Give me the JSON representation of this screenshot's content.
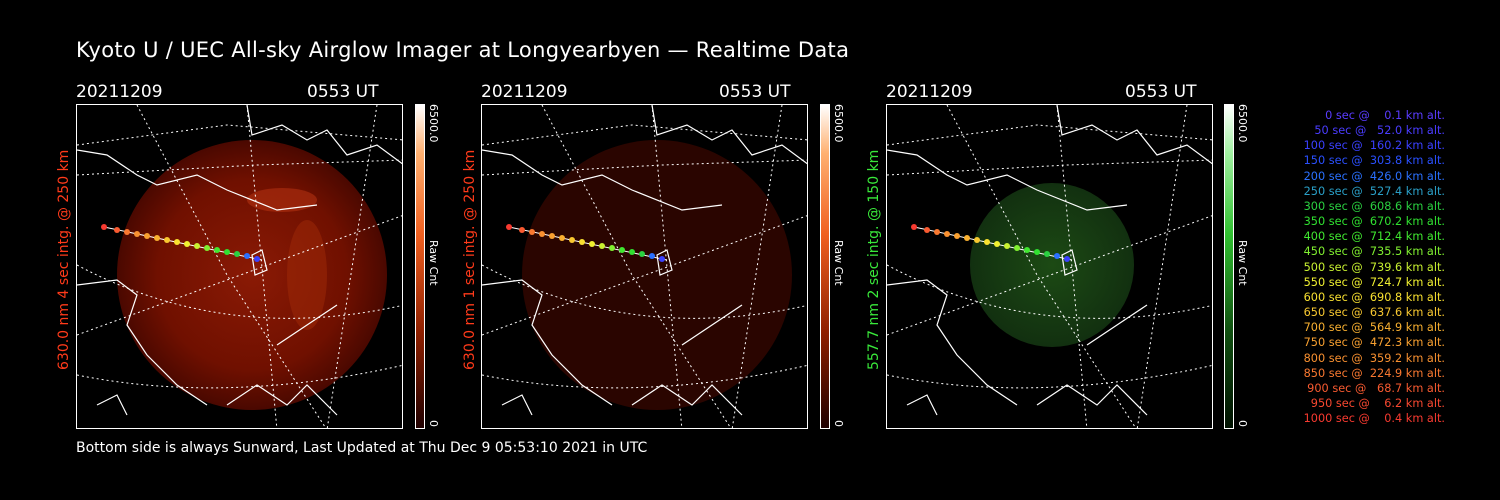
{
  "title": "Kyoto U / UEC All-sky Airglow Imager at Longyearbyen — Realtime Data",
  "footer": "Bottom side is always Sunward, Last Updated at Thu Dec  9 05:53:10 2021 in UTC",
  "panels": [
    {
      "date": "20211209",
      "time": "0553 UT",
      "side_label": "630.0 nm 4 sec intg. @ 250 km",
      "label_color": "#ff3a1a",
      "cbar_max": "6500.0",
      "cbar_min": "0",
      "cbar_unit": "Raw Cnt"
    },
    {
      "date": "20211209",
      "time": "0553 UT",
      "side_label": "630.0 nm 1 sec intg. @ 250 km",
      "label_color": "#ff3a1a",
      "cbar_max": "6500.0",
      "cbar_min": "0",
      "cbar_unit": "Raw Cnt"
    },
    {
      "date": "20211209",
      "time": "0553 UT",
      "side_label": "557.7 nm 2 sec intg. @ 150 km",
      "label_color": "#39e83a",
      "cbar_max": "6500.0",
      "cbar_min": "0",
      "cbar_unit": "Raw Cnt"
    }
  ],
  "legend": [
    {
      "text": "0 sec @    0.1 km alt.",
      "color": "#5a3cff"
    },
    {
      "text": "50 sec @   52.0 km alt.",
      "color": "#4a3cff"
    },
    {
      "text": "100 sec @  160.2 km alt.",
      "color": "#3a40ff"
    },
    {
      "text": "150 sec @  303.8 km alt.",
      "color": "#2a50ff"
    },
    {
      "text": "200 sec @  426.0 km alt.",
      "color": "#2a70ff"
    },
    {
      "text": "250 sec @  527.4 km alt.",
      "color": "#2aa0c8"
    },
    {
      "text": "300 sec @  608.6 km alt.",
      "color": "#2ad040"
    },
    {
      "text": "350 sec @  670.2 km alt.",
      "color": "#30e030"
    },
    {
      "text": "400 sec @  712.4 km alt.",
      "color": "#40e830"
    },
    {
      "text": "450 sec @  735.5 km alt.",
      "color": "#80f030"
    },
    {
      "text": "500 sec @  739.6 km alt.",
      "color": "#c8f030"
    },
    {
      "text": "550 sec @  724.7 km alt.",
      "color": "#f0f030"
    },
    {
      "text": "600 sec @  690.8 km alt.",
      "color": "#f8e030"
    },
    {
      "text": "650 sec @  637.6 km alt.",
      "color": "#f8c830"
    },
    {
      "text": "700 sec @  564.9 km alt.",
      "color": "#f8b030"
    },
    {
      "text": "750 sec @  472.3 km alt.",
      "color": "#f8a030"
    },
    {
      "text": "800 sec @  359.2 km alt.",
      "color": "#f89030"
    },
    {
      "text": "850 sec @  224.9 km alt.",
      "color": "#f87830"
    },
    {
      "text": "900 sec @   68.7 km alt.",
      "color": "#f85a30"
    },
    {
      "text": "950 sec @    6.2 km alt.",
      "color": "#f84830"
    },
    {
      "text": "1000 sec @    0.4 km alt.",
      "color": "#f83a30"
    }
  ]
}
